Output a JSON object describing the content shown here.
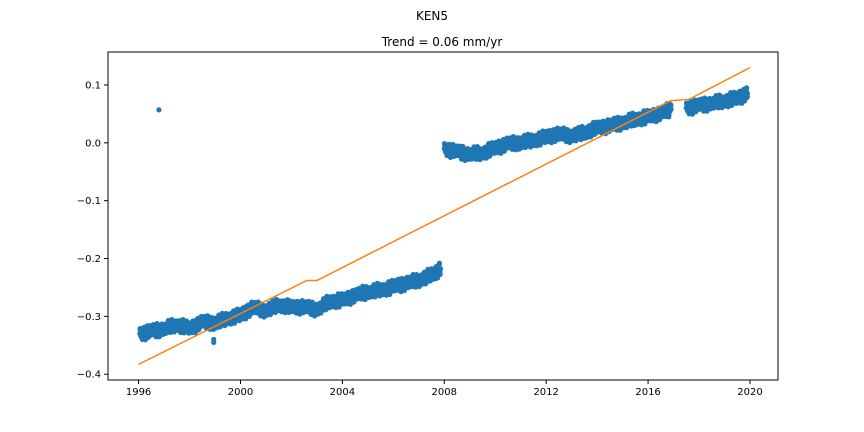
{
  "chart_data": {
    "type": "scatter",
    "suptitle": "KEN5",
    "title": "Trend = 0.06 mm/yr",
    "xlabel": "",
    "ylabel": "",
    "xlim": [
      1994.8,
      2021.1
    ],
    "ylim": [
      -0.41,
      0.157
    ],
    "xticks": [
      1996,
      2000,
      2004,
      2008,
      2012,
      2016,
      2020
    ],
    "yticks": [
      0.1,
      0.0,
      -0.1,
      -0.2,
      -0.3,
      -0.4
    ],
    "ytick_labels": [
      "0.1",
      "0.0",
      "−0.1",
      "−0.2",
      "−0.3",
      "−0.4"
    ],
    "grid": false,
    "series": [
      {
        "kind": "scatter",
        "color": "#1f77b4",
        "segments": [
          {
            "x": [
              1996.05,
              1996.5,
              1997.0,
              1997.5,
              1998.0,
              1998.5,
              1999.0,
              1999.5,
              2000.0,
              2000.5,
              2001.0,
              2001.5,
              2002.0,
              2002.5,
              2003.0,
              2003.5,
              2004.0,
              2004.5,
              2005.0,
              2005.5,
              2006.0,
              2006.5,
              2007.0,
              2007.5,
              2007.85
            ],
            "y": [
              -0.33,
              -0.325,
              -0.322,
              -0.315,
              -0.32,
              -0.31,
              -0.312,
              -0.303,
              -0.298,
              -0.285,
              -0.29,
              -0.28,
              -0.285,
              -0.283,
              -0.288,
              -0.275,
              -0.272,
              -0.263,
              -0.258,
              -0.255,
              -0.248,
              -0.243,
              -0.238,
              -0.228,
              -0.218
            ]
          },
          {
            "x": [
              2008.0,
              2008.5,
              2009.0,
              2009.5,
              2010.0,
              2010.5,
              2011.0,
              2011.5,
              2012.0,
              2012.5,
              2013.0,
              2013.5,
              2014.0,
              2014.5,
              2015.0,
              2015.5,
              2016.0,
              2016.5,
              2016.9
            ],
            "y": [
              -0.01,
              -0.015,
              -0.02,
              -0.018,
              -0.008,
              -0.002,
              0.0,
              0.005,
              0.01,
              0.015,
              0.012,
              0.018,
              0.025,
              0.03,
              0.035,
              0.04,
              0.045,
              0.052,
              0.058
            ]
          },
          {
            "x": [
              2017.5,
              2018.0,
              2018.5,
              2019.0,
              2019.5,
              2019.9
            ],
            "y": [
              0.06,
              0.065,
              0.068,
              0.072,
              0.078,
              0.085
            ]
          }
        ],
        "outliers": {
          "x": [
            1996.8,
            1998.95,
            1998.95
          ],
          "y": [
            0.057,
            -0.34,
            -0.345
          ]
        }
      },
      {
        "kind": "line",
        "color": "#ff7f0e",
        "x": [
          1996.0,
          2002.6,
          2003.0,
          2016.9,
          2017.6,
          2020.0
        ],
        "y": [
          -0.383,
          -0.238,
          -0.238,
          0.073,
          0.075,
          0.13
        ]
      }
    ]
  }
}
